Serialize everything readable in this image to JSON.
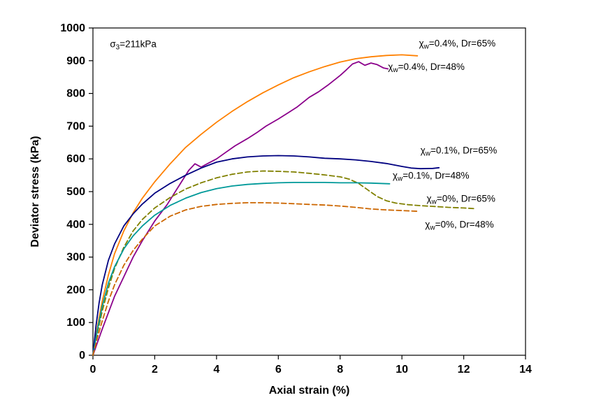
{
  "figure": {
    "background": "#FFFFFF",
    "border_color": "#000000"
  },
  "chart_data": {
    "type": "line",
    "title": "",
    "xlabel": "Axial strain (%)",
    "ylabel": "Deviator stress (kPa)",
    "xlim": [
      0,
      14
    ],
    "ylim": [
      0,
      1000
    ],
    "xticks": [
      0,
      2,
      4,
      6,
      8,
      10,
      12,
      14
    ],
    "yticks": [
      0,
      100,
      200,
      300,
      400,
      500,
      600,
      700,
      800,
      900,
      1000
    ],
    "grid": false,
    "legend_position": "none-direct-labels",
    "series": [
      {
        "name": "χw=0.4%, Dr=65%",
        "color": "#FF8000",
        "dash": "solid",
        "points": [
          [
            0,
            0
          ],
          [
            0.1,
            60
          ],
          [
            0.2,
            115
          ],
          [
            0.3,
            165
          ],
          [
            0.5,
            245
          ],
          [
            0.7,
            310
          ],
          [
            1,
            380
          ],
          [
            1.3,
            435
          ],
          [
            1.6,
            480
          ],
          [
            2,
            530
          ],
          [
            2.5,
            585
          ],
          [
            3,
            635
          ],
          [
            3.5,
            675
          ],
          [
            4,
            712
          ],
          [
            4.5,
            745
          ],
          [
            5,
            775
          ],
          [
            5.5,
            802
          ],
          [
            6,
            826
          ],
          [
            6.5,
            848
          ],
          [
            7,
            866
          ],
          [
            7.5,
            882
          ],
          [
            8,
            896
          ],
          [
            8.5,
            906
          ],
          [
            9,
            912
          ],
          [
            9.5,
            916
          ],
          [
            10,
            918
          ],
          [
            10.5,
            915
          ]
        ]
      },
      {
        "name": "χw=0.4%, Dr=48%",
        "color": "#8B008B",
        "dash": "solid",
        "points": [
          [
            0,
            0
          ],
          [
            0.15,
            40
          ],
          [
            0.3,
            80
          ],
          [
            0.5,
            130
          ],
          [
            0.7,
            180
          ],
          [
            1,
            240
          ],
          [
            1.3,
            300
          ],
          [
            1.6,
            350
          ],
          [
            2,
            410
          ],
          [
            2.4,
            460
          ],
          [
            2.8,
            520
          ],
          [
            3.1,
            565
          ],
          [
            3.3,
            585
          ],
          [
            3.5,
            575
          ],
          [
            3.7,
            585
          ],
          [
            4,
            600
          ],
          [
            4.3,
            620
          ],
          [
            4.6,
            640
          ],
          [
            5,
            662
          ],
          [
            5.3,
            680
          ],
          [
            5.6,
            700
          ],
          [
            6,
            722
          ],
          [
            6.3,
            740
          ],
          [
            6.6,
            758
          ],
          [
            7,
            788
          ],
          [
            7.3,
            805
          ],
          [
            7.6,
            825
          ],
          [
            8,
            855
          ],
          [
            8.2,
            872
          ],
          [
            8.4,
            890
          ],
          [
            8.6,
            897
          ],
          [
            8.8,
            886
          ],
          [
            9,
            893
          ],
          [
            9.2,
            888
          ],
          [
            9.4,
            878
          ],
          [
            9.55,
            875
          ]
        ]
      },
      {
        "name": "χw=0.1%, Dr=65%",
        "color": "#000080",
        "dash": "solid",
        "points": [
          [
            0,
            0
          ],
          [
            0.1,
            90
          ],
          [
            0.2,
            160
          ],
          [
            0.3,
            215
          ],
          [
            0.5,
            290
          ],
          [
            0.7,
            340
          ],
          [
            1,
            395
          ],
          [
            1.3,
            432
          ],
          [
            1.6,
            462
          ],
          [
            2,
            495
          ],
          [
            2.5,
            525
          ],
          [
            3,
            550
          ],
          [
            3.5,
            572
          ],
          [
            4,
            590
          ],
          [
            4.5,
            600
          ],
          [
            5,
            606
          ],
          [
            5.5,
            609
          ],
          [
            6,
            610
          ],
          [
            6.5,
            609
          ],
          [
            7,
            606
          ],
          [
            7.5,
            602
          ],
          [
            8,
            600
          ],
          [
            8.5,
            597
          ],
          [
            9,
            592
          ],
          [
            9.5,
            586
          ],
          [
            10,
            577
          ],
          [
            10.3,
            572
          ],
          [
            10.6,
            570
          ],
          [
            11,
            571
          ],
          [
            11.2,
            573
          ]
        ]
      },
      {
        "name": "χw=0.1%, Dr=48%",
        "color": "#808000",
        "dash": "dashed",
        "points": [
          [
            0,
            0
          ],
          [
            0.15,
            70
          ],
          [
            0.3,
            135
          ],
          [
            0.5,
            205
          ],
          [
            0.7,
            265
          ],
          [
            1,
            330
          ],
          [
            1.3,
            380
          ],
          [
            1.6,
            415
          ],
          [
            2,
            450
          ],
          [
            2.5,
            482
          ],
          [
            3,
            508
          ],
          [
            3.5,
            527
          ],
          [
            4,
            542
          ],
          [
            4.5,
            553
          ],
          [
            5,
            560
          ],
          [
            5.5,
            563
          ],
          [
            6,
            562
          ],
          [
            6.5,
            560
          ],
          [
            7,
            556
          ],
          [
            7.5,
            551
          ],
          [
            8,
            545
          ],
          [
            8.3,
            538
          ],
          [
            8.6,
            525
          ],
          [
            8.9,
            505
          ],
          [
            9.2,
            485
          ],
          [
            9.5,
            472
          ],
          [
            9.8,
            465
          ],
          [
            10.2,
            460
          ],
          [
            10.6,
            457
          ],
          [
            11,
            455
          ],
          [
            11.5,
            452
          ],
          [
            12,
            450
          ],
          [
            12.35,
            448
          ]
        ]
      },
      {
        "name": "χw=0%, Dr=65%",
        "color": "#009999",
        "dash": "solid",
        "points": [
          [
            0,
            0
          ],
          [
            0.15,
            80
          ],
          [
            0.3,
            150
          ],
          [
            0.5,
            220
          ],
          [
            0.7,
            270
          ],
          [
            1,
            325
          ],
          [
            1.3,
            365
          ],
          [
            1.6,
            395
          ],
          [
            2,
            428
          ],
          [
            2.5,
            458
          ],
          [
            3,
            480
          ],
          [
            3.5,
            497
          ],
          [
            4,
            509
          ],
          [
            4.5,
            517
          ],
          [
            5,
            522
          ],
          [
            5.5,
            525
          ],
          [
            6,
            527
          ],
          [
            6.5,
            528
          ],
          [
            7,
            528
          ],
          [
            7.5,
            528
          ],
          [
            8,
            527
          ],
          [
            8.5,
            527
          ],
          [
            9,
            526
          ],
          [
            9.6,
            524
          ]
        ]
      },
      {
        "name": "χw=0%, Dr=48%",
        "color": "#CC6600",
        "dash": "dashed",
        "points": [
          [
            0,
            0
          ],
          [
            0.15,
            55
          ],
          [
            0.3,
            105
          ],
          [
            0.5,
            165
          ],
          [
            0.7,
            215
          ],
          [
            1,
            275
          ],
          [
            1.3,
            320
          ],
          [
            1.6,
            355
          ],
          [
            2,
            395
          ],
          [
            2.5,
            425
          ],
          [
            3,
            444
          ],
          [
            3.5,
            455
          ],
          [
            4,
            461
          ],
          [
            4.5,
            464
          ],
          [
            5,
            466
          ],
          [
            5.5,
            466
          ],
          [
            6,
            465
          ],
          [
            6.5,
            463
          ],
          [
            7,
            461
          ],
          [
            7.5,
            459
          ],
          [
            8,
            456
          ],
          [
            8.5,
            452
          ],
          [
            9,
            447
          ],
          [
            9.5,
            444
          ],
          [
            10,
            442
          ],
          [
            10.5,
            440
          ]
        ]
      }
    ],
    "annotations": [
      {
        "id": "sigma3-note",
        "prefix": "σ",
        "sub": "3",
        "rest": "=211kPa",
        "x": 0.55,
        "y": 950
      },
      {
        "id": "label-04-65",
        "prefix": "χ",
        "sub": "w",
        "rest": "=0.4%, Dr=65%",
        "x": 10.55,
        "y": 952
      },
      {
        "id": "label-04-48",
        "prefix": "χ",
        "sub": "w",
        "rest": "=0.4%, Dr=48%",
        "x": 9.55,
        "y": 880
      },
      {
        "id": "label-01-65",
        "prefix": "χ",
        "sub": "w",
        "rest": "=0.1%, Dr=65%",
        "x": 10.6,
        "y": 625
      },
      {
        "id": "label-01-48",
        "prefix": "χ",
        "sub": "w",
        "rest": "=0.1%, Dr=48%",
        "x": 9.7,
        "y": 548
      },
      {
        "id": "label-0-65",
        "prefix": "χ",
        "sub": "w",
        "rest": "=0%, Dr=65%",
        "x": 10.8,
        "y": 478
      },
      {
        "id": "label-0-48",
        "prefix": "χ",
        "sub": "w",
        "rest": "=0%, Dr=48%",
        "x": 10.75,
        "y": 398
      }
    ]
  }
}
